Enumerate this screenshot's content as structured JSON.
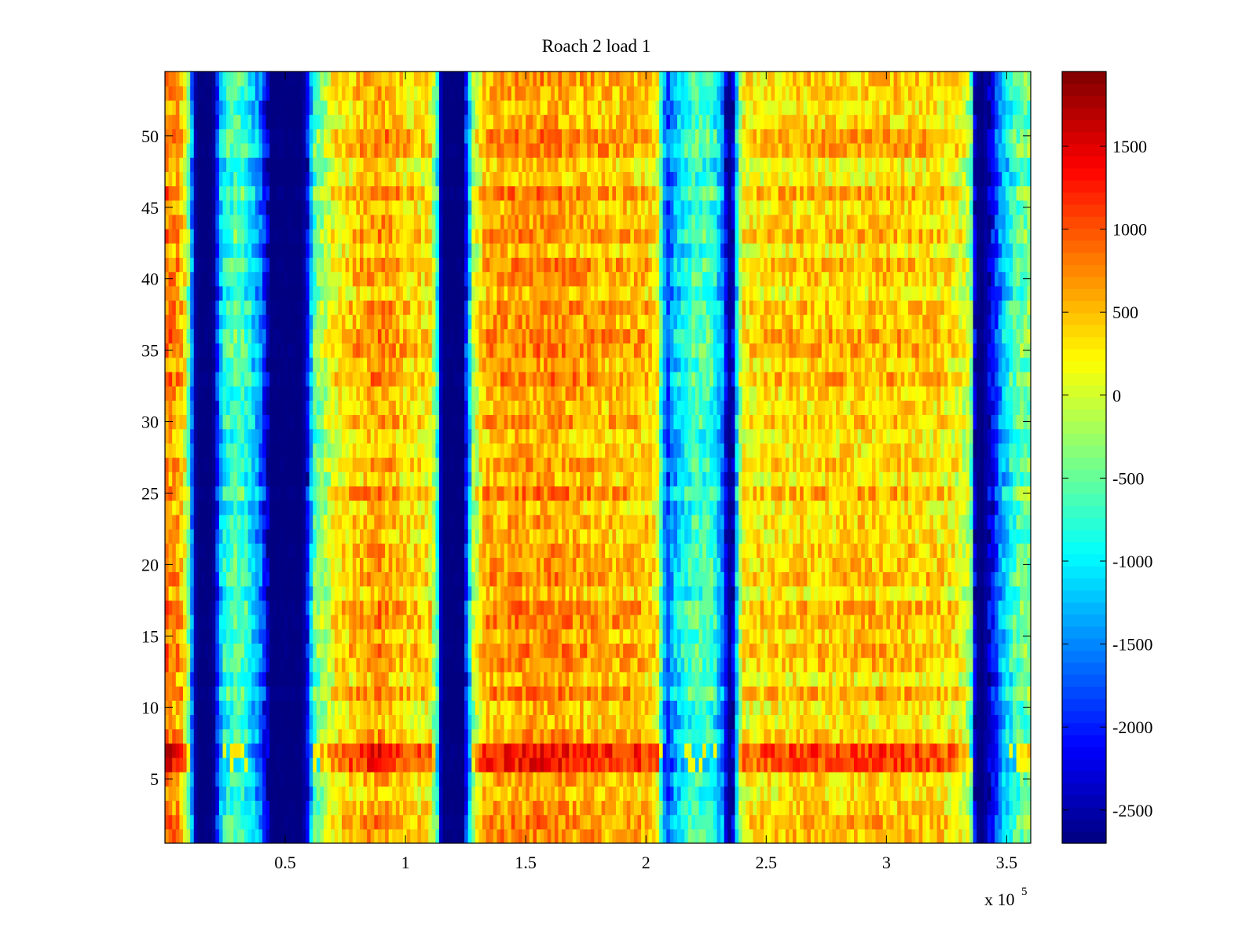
{
  "chart_data": {
    "type": "heatmap",
    "title": "Roach 2 load 1",
    "xlabel": "",
    "ylabel": "",
    "xlim": [
      0,
      360000
    ],
    "ylim": [
      0.5,
      54.5
    ],
    "rows": 54,
    "x_exponent_label": "x 10",
    "x_exponent_power": "5",
    "x_ticks": [
      {
        "value": 50000,
        "label": "0.5"
      },
      {
        "value": 100000,
        "label": "1"
      },
      {
        "value": 150000,
        "label": "1.5"
      },
      {
        "value": 200000,
        "label": "2"
      },
      {
        "value": 250000,
        "label": "2.5"
      },
      {
        "value": 300000,
        "label": "3"
      },
      {
        "value": 350000,
        "label": "3.5"
      }
    ],
    "y_ticks": [
      {
        "value": 5,
        "label": "5"
      },
      {
        "value": 10,
        "label": "10"
      },
      {
        "value": 15,
        "label": "15"
      },
      {
        "value": 20,
        "label": "20"
      },
      {
        "value": 25,
        "label": "25"
      },
      {
        "value": 30,
        "label": "30"
      },
      {
        "value": 35,
        "label": "35"
      },
      {
        "value": 40,
        "label": "40"
      },
      {
        "value": 45,
        "label": "45"
      },
      {
        "value": 50,
        "label": "50"
      }
    ],
    "colorbar": {
      "colormap": "jet",
      "clim": [
        -2700,
        1950
      ],
      "ticks": [
        {
          "value": 1500,
          "label": "1500"
        },
        {
          "value": 1000,
          "label": "1000"
        },
        {
          "value": 500,
          "label": "500"
        },
        {
          "value": 0,
          "label": "0"
        },
        {
          "value": -500,
          "label": "-500"
        },
        {
          "value": -1000,
          "label": "-1000"
        },
        {
          "value": -1500,
          "label": "-1500"
        },
        {
          "value": -2000,
          "label": "-2000"
        },
        {
          "value": -2500,
          "label": "-2500"
        }
      ]
    },
    "grid": false,
    "column_profile": {
      "x": [
        0,
        6000,
        9000,
        11000,
        13000,
        15000,
        20000,
        22000,
        24000,
        30000,
        35000,
        40000,
        42000,
        44000,
        57000,
        59000,
        62000,
        70000,
        80000,
        90000,
        100000,
        110000,
        113000,
        115000,
        124000,
        126000,
        128000,
        133000,
        140000,
        160000,
        180000,
        200000,
        205000,
        207000,
        209000,
        212000,
        220000,
        228000,
        232000,
        234000,
        236000,
        238000,
        240000,
        260000,
        300000,
        320000,
        330000,
        335000,
        337000,
        340000,
        344000,
        348000,
        352000,
        356000,
        360000
      ],
      "values": [
        800,
        650,
        100,
        -1300,
        -2700,
        -2700,
        -2700,
        -1800,
        -900,
        -500,
        -900,
        -1600,
        -2200,
        -2700,
        -2700,
        -2300,
        -600,
        200,
        500,
        700,
        400,
        300,
        -500,
        -2700,
        -2700,
        -1600,
        -200,
        600,
        650,
        700,
        550,
        500,
        200,
        -1200,
        -1800,
        -1200,
        -600,
        -700,
        -1500,
        -2600,
        -2600,
        -900,
        250,
        400,
        450,
        400,
        200,
        -200,
        -2600,
        -2700,
        -2200,
        -1300,
        -800,
        -500,
        -400
      ],
      "note_rows_strong": [
        6,
        7
      ]
    }
  }
}
